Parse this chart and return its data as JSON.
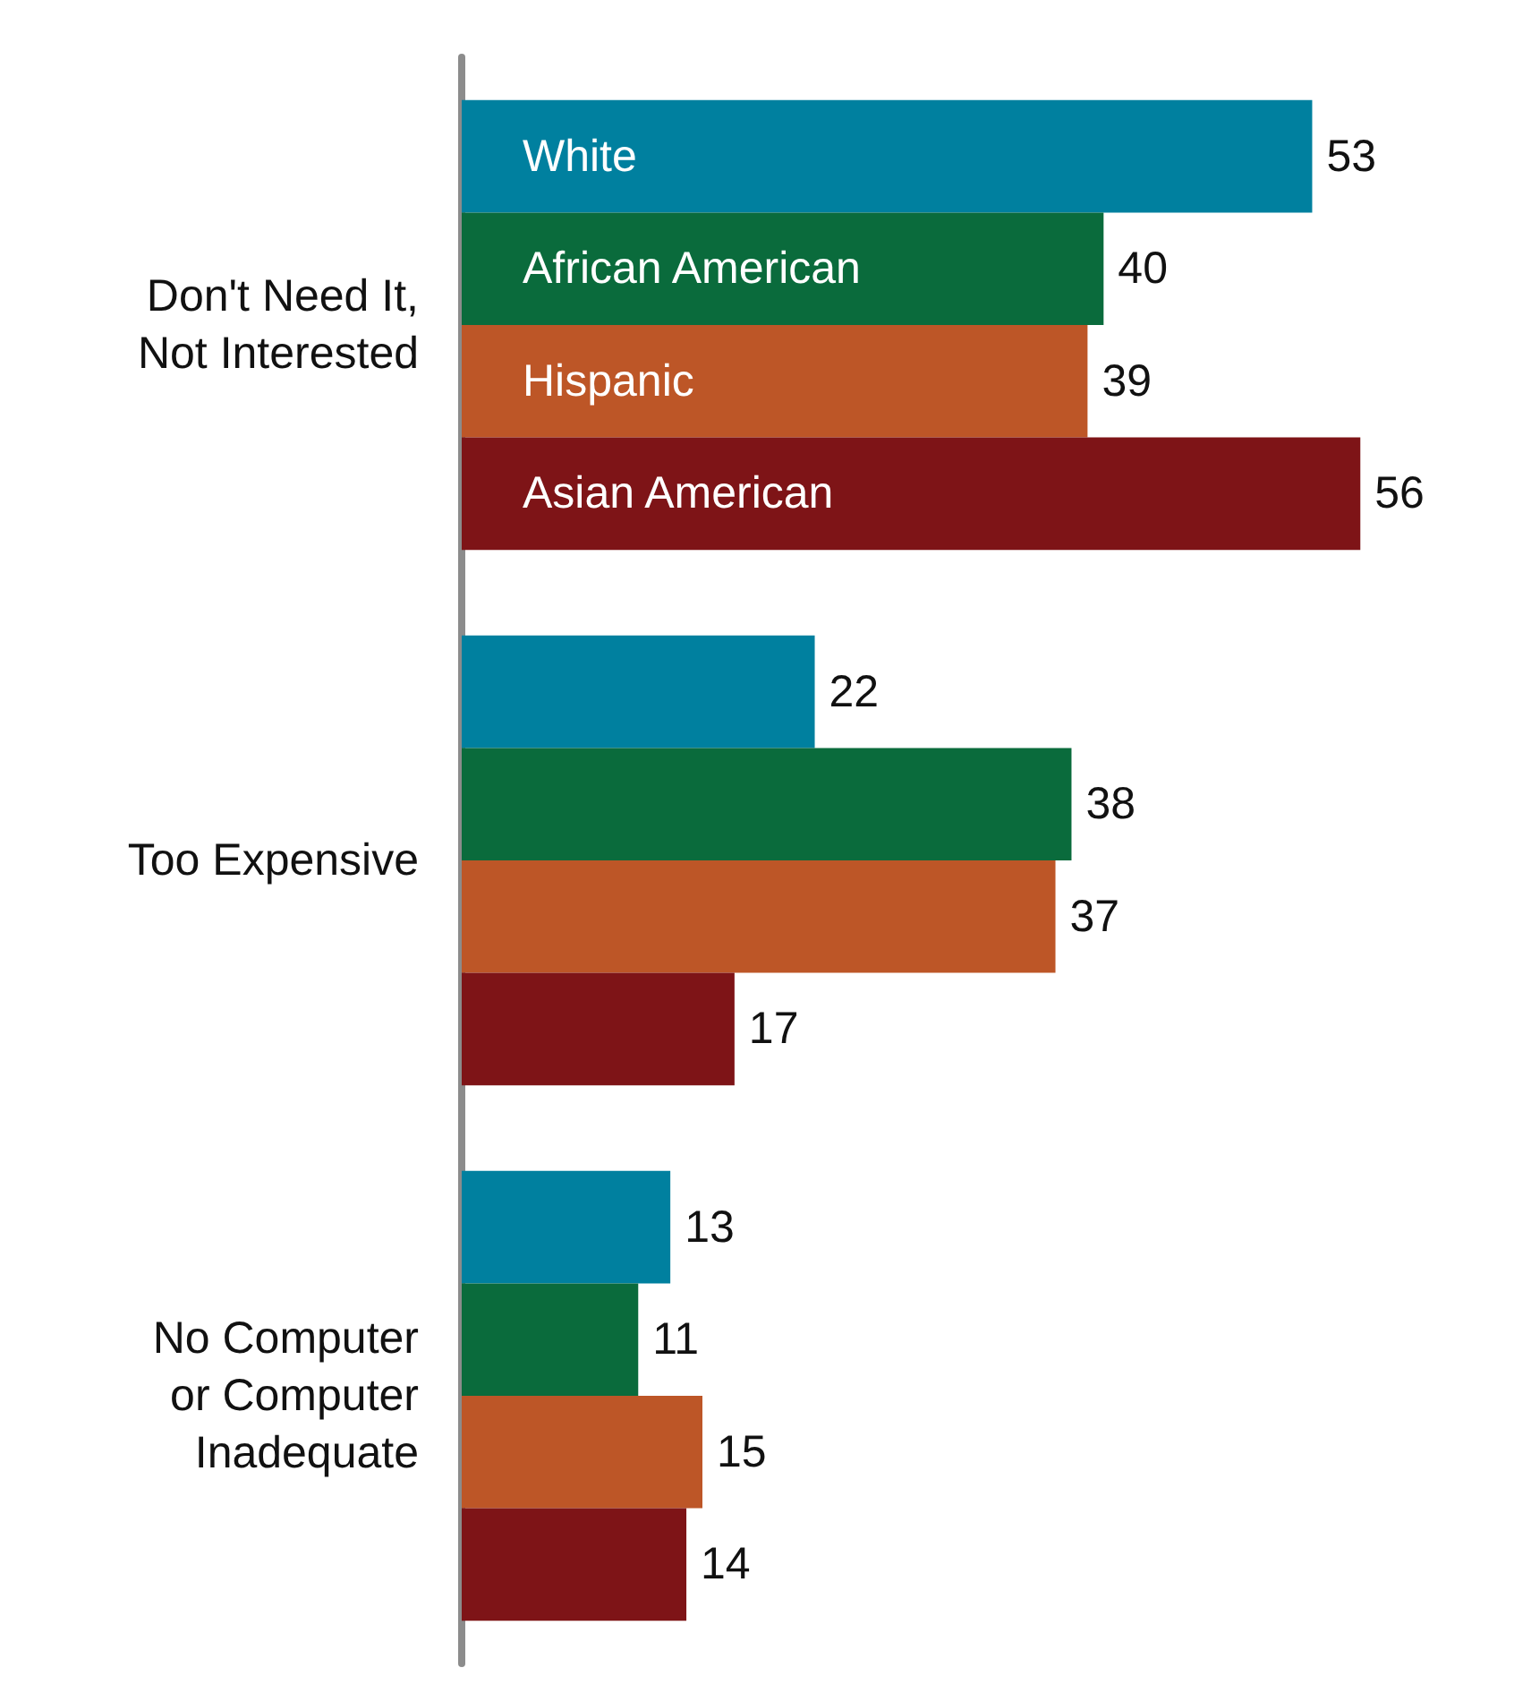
{
  "chart_data": {
    "type": "bar",
    "orientation": "horizontal",
    "categories": [
      "Don't Need It,\nNot Interested",
      "Too Expensive",
      "No Computer\nor Computer\nInadequate"
    ],
    "series": [
      {
        "name": "White",
        "color": "#00809f",
        "values": [
          53,
          22,
          13
        ]
      },
      {
        "name": "African American",
        "color": "#0a6b3c",
        "values": [
          40,
          38,
          11
        ]
      },
      {
        "name": "Hispanic",
        "color": "#bd5627",
        "values": [
          39,
          37,
          15
        ]
      },
      {
        "name": "Asian American",
        "color": "#7e1417",
        "values": [
          56,
          17,
          14
        ]
      }
    ],
    "data_labels": true,
    "legend": false,
    "grid": false
  }
}
